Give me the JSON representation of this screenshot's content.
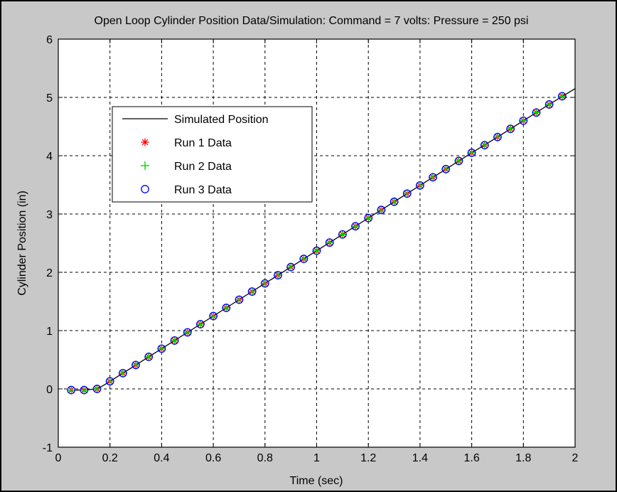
{
  "chart_data": {
    "type": "line",
    "title": "Open Loop Cylinder Position Data/Simulation: Command = 7 volts: Pressure = 250 psi",
    "xlabel": "Time (sec)",
    "ylabel": "Cylinder Position (in)",
    "xlim": [
      0,
      2
    ],
    "ylim": [
      -1,
      6
    ],
    "xticks": [
      "0",
      "0.2",
      "0.4",
      "0.6",
      "0.8",
      "1",
      "1.2",
      "1.4",
      "1.6",
      "1.8",
      "2"
    ],
    "yticks": [
      "-1",
      "0",
      "1",
      "2",
      "3",
      "4",
      "5",
      "6"
    ],
    "grid": true,
    "legend_position": "upper-left",
    "simulated": {
      "name": "Simulated Position",
      "color": "#000000",
      "x": [
        0.05,
        0.1,
        0.15,
        0.175,
        0.2,
        0.3,
        0.4,
        0.5,
        0.6,
        0.7,
        0.8,
        0.9,
        1.0,
        1.1,
        1.2,
        1.3,
        1.4,
        1.5,
        1.6,
        1.7,
        1.8,
        1.9,
        2.0
      ],
      "y": [
        -0.02,
        -0.02,
        0.0,
        0.06,
        0.13,
        0.41,
        0.69,
        0.97,
        1.25,
        1.53,
        1.81,
        2.09,
        2.37,
        2.65,
        2.93,
        3.21,
        3.49,
        3.77,
        4.05,
        4.32,
        4.6,
        4.88,
        5.15
      ]
    },
    "sample_x": [
      0.05,
      0.1,
      0.15,
      0.2,
      0.25,
      0.3,
      0.35,
      0.4,
      0.45,
      0.5,
      0.55,
      0.6,
      0.65,
      0.7,
      0.75,
      0.8,
      0.85,
      0.9,
      0.95,
      1.0,
      1.05,
      1.1,
      1.15,
      1.2,
      1.25,
      1.3,
      1.35,
      1.4,
      1.45,
      1.5,
      1.55,
      1.6,
      1.65,
      1.7,
      1.75,
      1.8,
      1.85,
      1.9,
      1.95
    ],
    "sample_y": [
      -0.02,
      -0.02,
      0.0,
      0.13,
      0.27,
      0.41,
      0.55,
      0.69,
      0.83,
      0.97,
      1.11,
      1.25,
      1.39,
      1.53,
      1.67,
      1.81,
      1.95,
      2.09,
      2.23,
      2.37,
      2.51,
      2.65,
      2.79,
      2.93,
      3.07,
      3.21,
      3.35,
      3.49,
      3.63,
      3.77,
      3.91,
      4.05,
      4.18,
      4.32,
      4.46,
      4.6,
      4.74,
      4.88,
      5.02
    ],
    "series": [
      {
        "name": "Run 1 Data",
        "marker": "asterisk",
        "color": "#ff0000"
      },
      {
        "name": "Run 2 Data",
        "marker": "plus",
        "color": "#00dd00"
      },
      {
        "name": "Run 3 Data",
        "marker": "circle",
        "color": "#0000ff"
      }
    ]
  }
}
